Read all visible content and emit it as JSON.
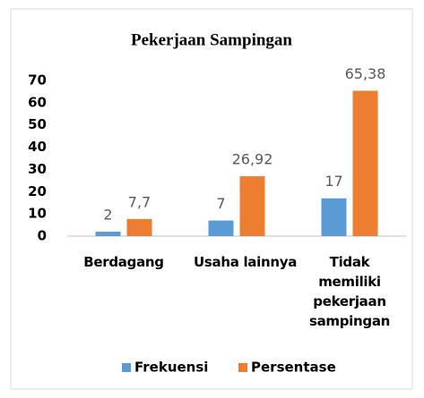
{
  "chart_data": {
    "type": "bar",
    "title": "Pekerjaan Sampingan",
    "categories": [
      "Berdagang",
      "Usaha lainnya",
      "Tidak memiliki pekerjaan sampingan"
    ],
    "series": [
      {
        "name": "Frekuensi",
        "color": "#5b9bd5",
        "values": [
          2,
          7,
          17
        ]
      },
      {
        "name": "Persentase",
        "color": "#ed7d31",
        "values": [
          7.7,
          26.92,
          65.38
        ],
        "value_labels": [
          "7,7",
          "26,92",
          "65,38"
        ]
      }
    ],
    "ylim": [
      0,
      70
    ],
    "yticks": [
      0,
      10,
      20,
      30,
      40,
      50,
      60,
      70
    ],
    "grid": false,
    "legend": "bottom"
  }
}
